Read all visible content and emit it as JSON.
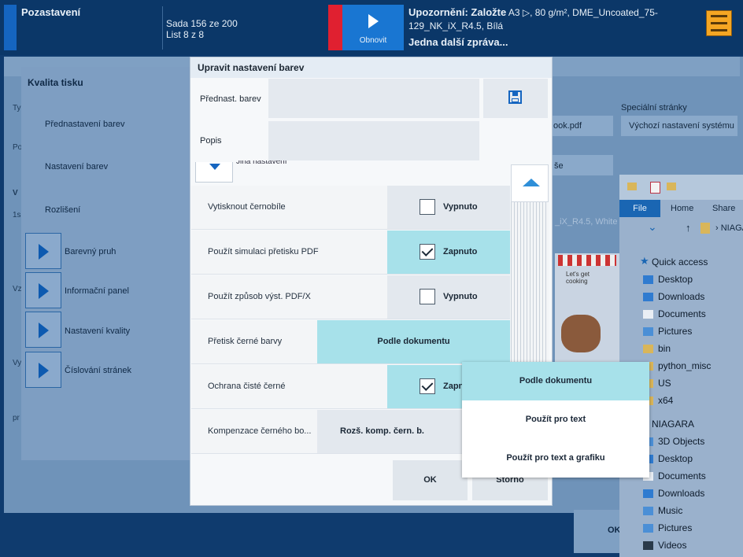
{
  "topbar": {
    "title": "Pozastavení",
    "set_info": "Sada 156 ze 200",
    "sheet_info": "List 8 z 8",
    "refresh_label": "Obnovit",
    "warning_prefix": "Upozornění: Založte",
    "warning_detail": "A3 ▷, 80 g/m², DME_Uncoated_75-",
    "warning_detail2": "129_NK_iX_R4.5, Bílá",
    "warning_more": "Jedna další zpráva...",
    "colors": {
      "bg": "#0b3768",
      "accent": "#1565c0",
      "alert": "#e02030",
      "status": "#f5a623"
    }
  },
  "background": {
    "quality_title": "Kvalita tisku",
    "items": [
      "Přednastavení barev",
      "Nastavení barev",
      "Rozlišení"
    ],
    "expanders": [
      "Barevný pruh",
      "Informační panel",
      "Nastavení kvality",
      "Číslování stránek"
    ],
    "special_pages": "Speciální stránky",
    "default_settings": "Výchozí nastavení systému",
    "pdf_name": "ook.pdf",
    "other_text": "še",
    "paper_text": "_iX_R4.5, White |",
    "ok_label": "OK",
    "side_letters": [
      "Ty",
      "Po",
      "V",
      "1s",
      "Vz",
      "Vy",
      "pr"
    ],
    "thumb_text": "Let's get cooking"
  },
  "dialog": {
    "title": "Upravit nastavení barev",
    "preset_label": "Přednast. barev",
    "desc_label": "Popis",
    "other_settings": "Jiná nastavení",
    "rows": [
      {
        "label": "Vytisknout černobíle",
        "value": "Vypnuto",
        "checked": false
      },
      {
        "label": "Použít simulaci přetisku PDF",
        "value": "Zapnuto",
        "checked": true
      },
      {
        "label": "Použít způsob výst. PDF/X",
        "value": "Vypnuto",
        "checked": false
      },
      {
        "label": "Přetisk černé barvy",
        "value": "Podle dokumentu"
      },
      {
        "label": "Ochrana čisté černé",
        "value": "Zapnuto",
        "checked": true
      },
      {
        "label": "Kompenzace černého bo...",
        "value": "Rozš. komp. čern. b."
      }
    ],
    "ok_label": "OK",
    "cancel_label": "Storno"
  },
  "dropdown": {
    "options": [
      "Podle dokumentu",
      "Použít pro text",
      "Použít pro text a grafiku"
    ],
    "selected": "Podle dokumentu"
  },
  "explorer": {
    "tabs": [
      "File",
      "Home",
      "Share"
    ],
    "path": "NIAGA",
    "items": [
      "Quick access",
      "Desktop",
      "Downloads",
      "Documents",
      "Pictures",
      "bin",
      "python_misc",
      "US",
      "x64",
      "NIAGARA",
      "3D Objects",
      "Desktop",
      "Documents",
      "Downloads",
      "Music",
      "Pictures",
      "Videos"
    ]
  }
}
